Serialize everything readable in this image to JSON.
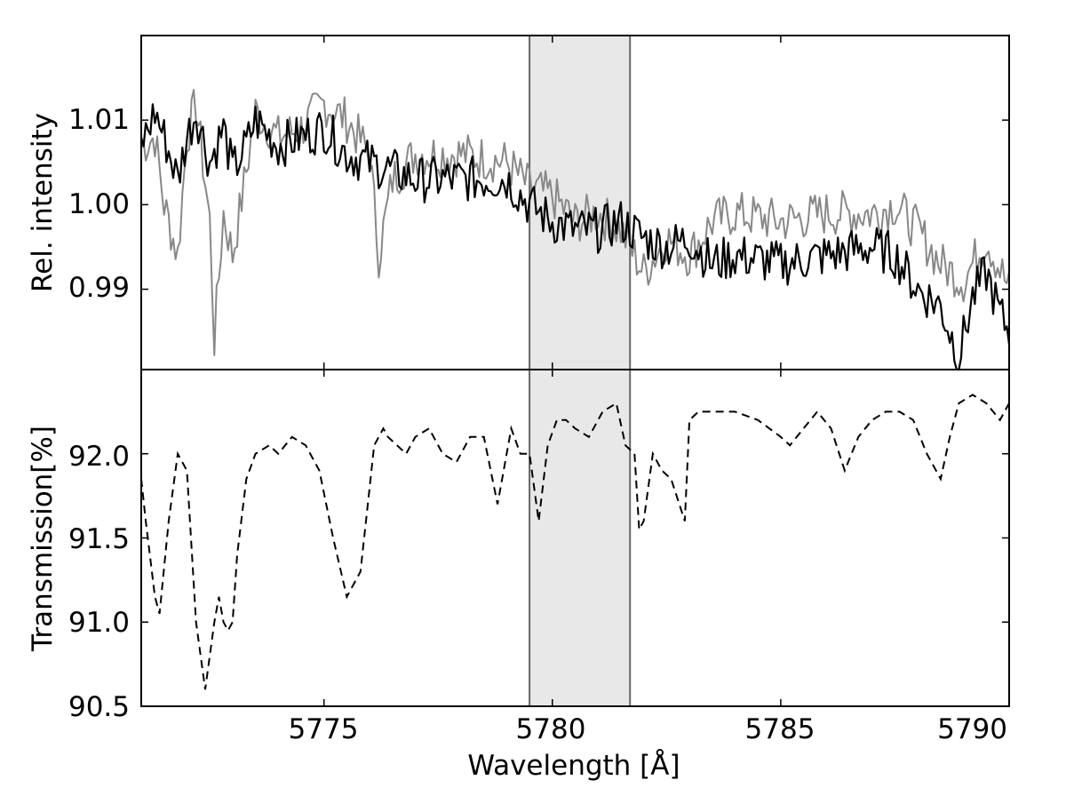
{
  "chart_data": [
    {
      "type": "line",
      "panel": "top",
      "ylabel": "Rel. intensity",
      "xlim": [
        5771.0,
        5790.0
      ],
      "ylim": [
        0.9805,
        1.02
      ],
      "yticks": [
        0.99,
        1.0,
        1.01
      ],
      "ytick_labels": [
        "0.99",
        "1.00",
        "1.01"
      ],
      "grid": false,
      "series": [
        {
          "color": "#888888",
          "x": [
            5771.0,
            5771.3,
            5771.5,
            5771.8,
            5772.0,
            5772.2,
            5772.5,
            5772.6,
            5772.8,
            5773.0,
            5773.3,
            5773.5,
            5774.0,
            5774.5,
            5775.0,
            5775.5,
            5776.0,
            5776.2,
            5776.5,
            5777.0,
            5778.0,
            5779.0,
            5779.5,
            5780.0,
            5780.5,
            5781.0,
            5781.5,
            5782.0,
            5782.5,
            5783.0,
            5783.5,
            5784.0,
            5785.0,
            5786.0,
            5787.0,
            5787.5,
            5788.0,
            5788.5,
            5789.0,
            5789.5,
            5790.0
          ],
          "values": [
            1.007,
            1.008,
            1.0,
            0.994,
            1.008,
            1.012,
            0.998,
            0.984,
            0.999,
            0.994,
            1.004,
            1.011,
            1.008,
            1.009,
            1.012,
            1.01,
            1.006,
            0.994,
            1.003,
            1.006,
            1.006,
            1.005,
            1.002,
            1.001,
            0.998,
            0.999,
            0.997,
            0.992,
            0.996,
            0.994,
            0.998,
            0.999,
            0.998,
            0.999,
            0.999,
            1.0,
            0.997,
            0.993,
            0.991,
            0.996,
            0.99
          ]
        },
        {
          "color": "#000000",
          "x": [
            5771.0,
            5771.3,
            5771.5,
            5771.8,
            5772.0,
            5772.2,
            5772.5,
            5772.8,
            5773.0,
            5773.3,
            5773.5,
            5774.0,
            5774.5,
            5775.0,
            5775.5,
            5776.0,
            5776.5,
            5777.0,
            5778.0,
            5779.0,
            5779.5,
            5780.0,
            5780.5,
            5781.0,
            5781.5,
            5782.0,
            5782.5,
            5783.0,
            5783.5,
            5784.0,
            5785.0,
            5786.0,
            5787.0,
            5787.5,
            5788.0,
            5788.5,
            5788.9,
            5789.2,
            5789.5,
            5789.8,
            5790.0
          ],
          "values": [
            1.007,
            1.011,
            1.008,
            1.003,
            1.008,
            1.011,
            1.005,
            1.009,
            1.004,
            1.007,
            1.01,
            1.007,
            1.008,
            1.009,
            1.006,
            1.005,
            1.004,
            1.003,
            1.003,
            1.003,
            1.0,
            0.998,
            0.997,
            0.997,
            0.998,
            0.996,
            0.995,
            0.996,
            0.993,
            0.994,
            0.993,
            0.994,
            0.995,
            0.994,
            0.99,
            0.988,
            0.982,
            0.989,
            0.992,
            0.987,
            0.985
          ]
        }
      ]
    },
    {
      "type": "line",
      "panel": "bottom",
      "xlabel": "Wavelength [Å]",
      "ylabel": "Transmission[%]",
      "xlim": [
        5771.0,
        5790.0
      ],
      "ylim": [
        90.5,
        92.5
      ],
      "xticks": [
        5775,
        5780,
        5785,
        5790
      ],
      "xtick_labels": [
        "5775",
        "5780",
        "5785",
        "5790"
      ],
      "yticks": [
        90.5,
        91.0,
        91.5,
        92.0
      ],
      "ytick_labels": [
        "90.5",
        "91.0",
        "91.5",
        "92.0"
      ],
      "grid": false,
      "series": [
        {
          "style": "dashed",
          "color": "#000000",
          "x": [
            5771.0,
            5771.1,
            5771.3,
            5771.4,
            5771.6,
            5771.8,
            5772.0,
            5772.2,
            5772.4,
            5772.6,
            5772.7,
            5772.8,
            5772.9,
            5773.0,
            5773.1,
            5773.3,
            5773.5,
            5773.8,
            5774.0,
            5774.3,
            5774.6,
            5774.9,
            5775.2,
            5775.5,
            5775.8,
            5776.0,
            5776.1,
            5776.2,
            5776.3,
            5776.4,
            5776.6,
            5776.8,
            5777.0,
            5777.3,
            5777.6,
            5777.9,
            5778.2,
            5778.5,
            5778.8,
            5779.1,
            5779.3,
            5779.5,
            5779.7,
            5779.9,
            5780.1,
            5780.3,
            5780.5,
            5780.8,
            5781.1,
            5781.4,
            5781.6,
            5781.8,
            5781.9,
            5782.0,
            5782.2,
            5782.4,
            5782.6,
            5782.9,
            5783.0,
            5783.2,
            5783.4,
            5783.6,
            5784.0,
            5784.5,
            5785.0,
            5785.2,
            5785.5,
            5785.8,
            5786.1,
            5786.4,
            5786.7,
            5787.0,
            5787.3,
            5787.6,
            5787.9,
            5788.2,
            5788.5,
            5788.7,
            5788.9,
            5789.2,
            5789.5,
            5789.8,
            5790.0
          ],
          "values": [
            91.85,
            91.6,
            91.15,
            91.05,
            91.6,
            92.0,
            91.9,
            91.0,
            90.6,
            91.0,
            91.15,
            91.0,
            90.95,
            91.0,
            91.4,
            91.85,
            92.0,
            92.05,
            92.0,
            92.1,
            92.05,
            91.9,
            91.5,
            91.15,
            91.3,
            91.8,
            92.05,
            92.1,
            92.15,
            92.1,
            92.05,
            92.0,
            92.1,
            92.15,
            92.0,
            91.95,
            92.1,
            92.1,
            91.7,
            92.15,
            92.0,
            92.0,
            91.6,
            92.05,
            92.2,
            92.2,
            92.15,
            92.1,
            92.25,
            92.3,
            92.05,
            92.0,
            91.55,
            91.6,
            92.0,
            91.9,
            91.85,
            91.6,
            92.2,
            92.25,
            92.25,
            92.25,
            92.25,
            92.2,
            92.1,
            92.05,
            92.15,
            92.25,
            92.15,
            91.9,
            92.1,
            92.2,
            92.25,
            92.25,
            92.2,
            92.0,
            91.85,
            92.1,
            92.3,
            92.35,
            92.3,
            92.2,
            92.3
          ]
        }
      ]
    }
  ],
  "highlight_band": {
    "x_start": 5779.5,
    "x_end": 5781.7,
    "fill": "#e8e8e8",
    "edge": "#666666"
  },
  "colors": {
    "axes": "#000000",
    "gray_series": "#888888",
    "black_series": "#000000"
  }
}
